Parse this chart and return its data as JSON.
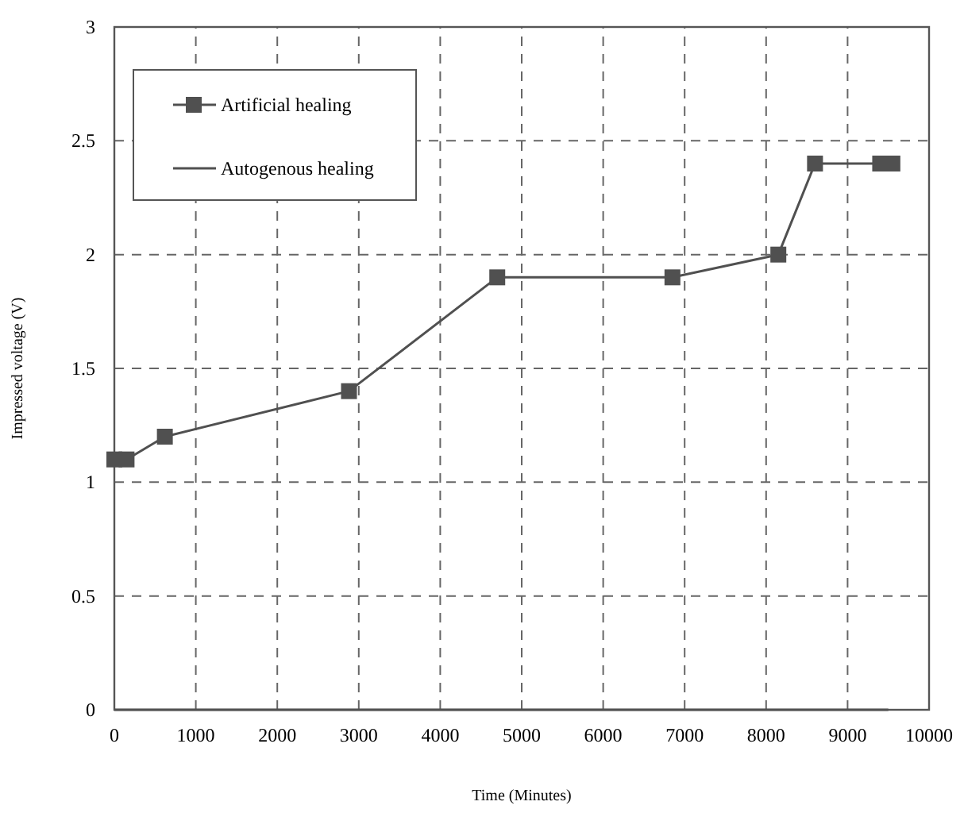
{
  "chart_data": {
    "type": "line",
    "xlabel": "Time (Minutes)",
    "ylabel": "Impressed voltage (V)",
    "xlim": [
      0,
      10000
    ],
    "xticks": [
      0,
      1000,
      2000,
      3000,
      4000,
      5000,
      6000,
      7000,
      8000,
      9000,
      10000
    ],
    "ylim": [
      0,
      3
    ],
    "yticks": [
      0,
      0.5,
      1,
      1.5,
      2,
      2.5,
      3
    ],
    "grid": true,
    "legend": "top left",
    "series": [
      {
        "name": "Artificial healing",
        "color": "#505050",
        "marker": "square",
        "x": [
          0,
          150,
          620,
          2880,
          4700,
          6850,
          8150,
          8600,
          9400,
          9550
        ],
        "values": [
          1.1,
          1.1,
          1.2,
          1.4,
          1.9,
          1.9,
          2.0,
          2.4,
          2.4,
          2.4
        ]
      },
      {
        "name": "Autogenous healing",
        "color": "#505050",
        "marker": "none",
        "x": [
          0,
          9500
        ],
        "values": [
          0,
          0
        ]
      }
    ]
  }
}
